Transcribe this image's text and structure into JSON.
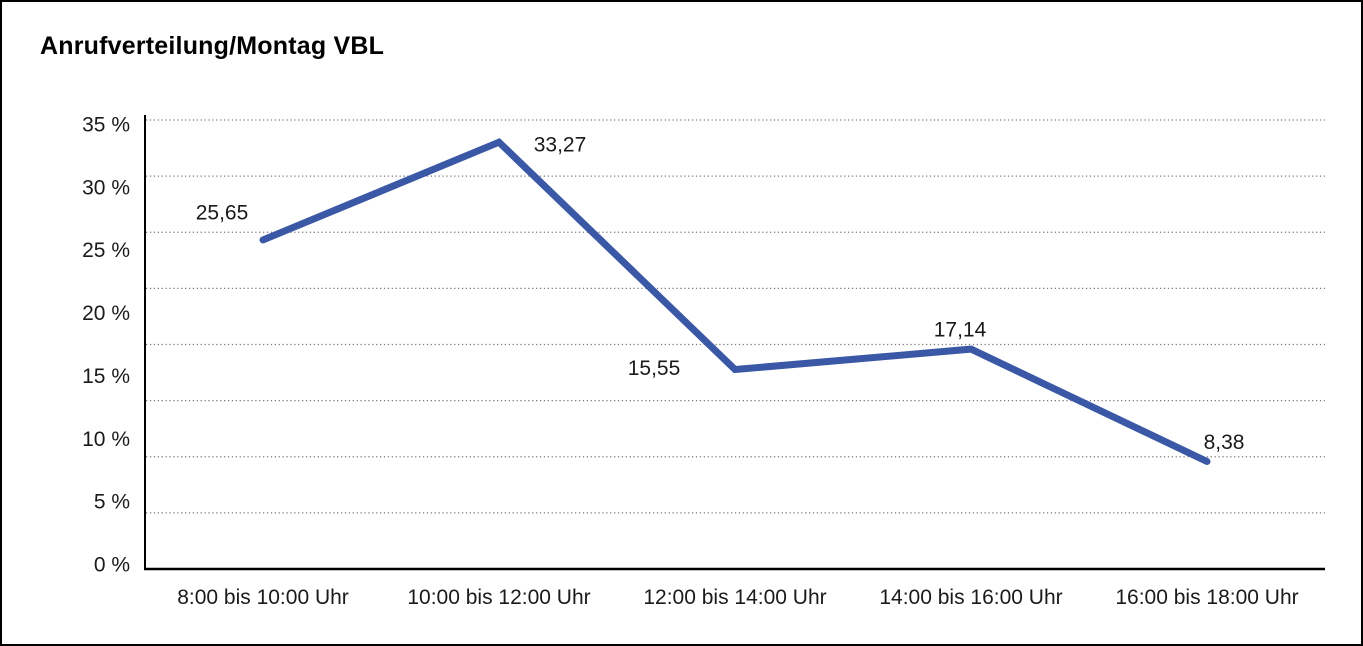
{
  "window": {
    "background_color": "#ffffff",
    "border_color": "#000000"
  },
  "chart_data": {
    "type": "line",
    "title": "Anrufverteilung/Montag VBL",
    "categories": [
      "8:00 bis 10:00 Uhr",
      "10:00 bis 12:00 Uhr",
      "12:00 bis 14:00 Uhr",
      "14:00 bis 16:00 Uhr",
      "16:00 bis 18:00 Uhr"
    ],
    "values": [
      25.65,
      33.27,
      15.55,
      17.14,
      8.38
    ],
    "point_labels": [
      "25,65",
      "33,27",
      "15,55",
      "17,14",
      "8,38"
    ],
    "unit": "%",
    "xlabel": "",
    "ylabel": "",
    "ylim": [
      0,
      35
    ],
    "ytick_interval": 5,
    "ytick_labels": [
      "35 %",
      "30 %",
      "25 %",
      "20 %",
      "15 %",
      "10 %",
      "5 %",
      "0 %"
    ],
    "grid": "horizontal-dotted",
    "legend_position": "none",
    "line_color": "#3A58A5",
    "grid_color": "#7d7d7d",
    "axis_color": "#000000",
    "text_color": "#1a1a1a"
  }
}
